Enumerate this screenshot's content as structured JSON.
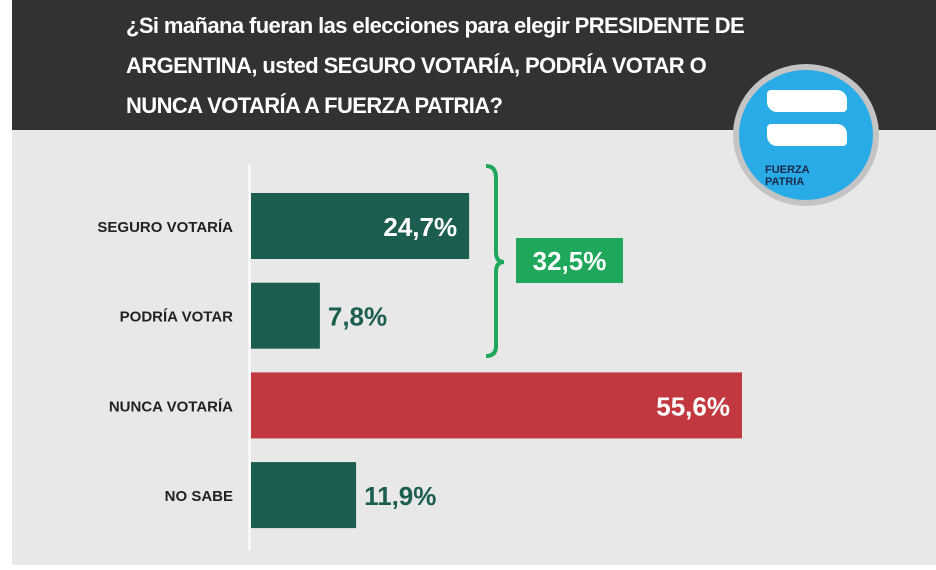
{
  "header": {
    "title": "¿Si mañana fueran las elecciones para elegir PRESIDENTE DE ARGENTINA, usted SEGURO VOTARÍA, PODRÍA VOTAR O NUNCA VOTARÍA A FUERZA PATRIA?"
  },
  "logo": {
    "line1": "FUERZA",
    "line2": "PATRIA"
  },
  "colors": {
    "green": "#1b5e50",
    "red": "#c1393f",
    "accent": "#1fa85b",
    "header": "#333131"
  },
  "chart_data": {
    "type": "bar",
    "orientation": "horizontal",
    "title": "¿Si mañana fueran las elecciones para elegir PRESIDENTE DE ARGENTINA, usted SEGURO VOTARÍA, PODRÍA VOTAR O NUNCA VOTARÍA A FUERZA PATRIA?",
    "categories": [
      "SEGURO VOTARÍA",
      "PODRÍA VOTAR",
      "NUNCA VOTARÍA",
      "NO SABE"
    ],
    "values": [
      24.7,
      7.8,
      55.6,
      11.9
    ],
    "labels": [
      "24,7%",
      "7,8%",
      "55,6%",
      "11,9%"
    ],
    "bar_colors": [
      "#1b5e50",
      "#1b5e50",
      "#c1393f",
      "#1b5e50"
    ],
    "label_inside": [
      true,
      false,
      true,
      false
    ],
    "group_total": {
      "label": "32,5%",
      "value": 32.5,
      "groups": [
        0,
        1
      ]
    },
    "unit": "%"
  }
}
